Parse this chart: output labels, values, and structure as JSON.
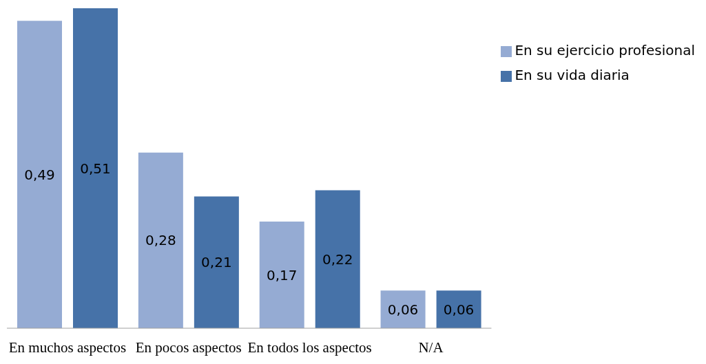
{
  "chart_data": {
    "type": "bar",
    "categories": [
      "En muchos aspectos",
      "En pocos aspectos",
      "En todos los aspectos",
      "N/A"
    ],
    "series": [
      {
        "name": "En su ejercicio profesional",
        "color": "#95abd3",
        "values": [
          0.49,
          0.28,
          0.17,
          0.06
        ],
        "value_labels": [
          "0,49",
          "0,28",
          "0,17",
          "0,06"
        ]
      },
      {
        "name": "En su vida diaria",
        "color": "#4672a8",
        "values": [
          0.51,
          0.21,
          0.22,
          0.06
        ],
        "value_labels": [
          "0,51",
          "0,21",
          "0,22",
          "0,06"
        ]
      }
    ],
    "legend": "top right",
    "grid": false
  }
}
